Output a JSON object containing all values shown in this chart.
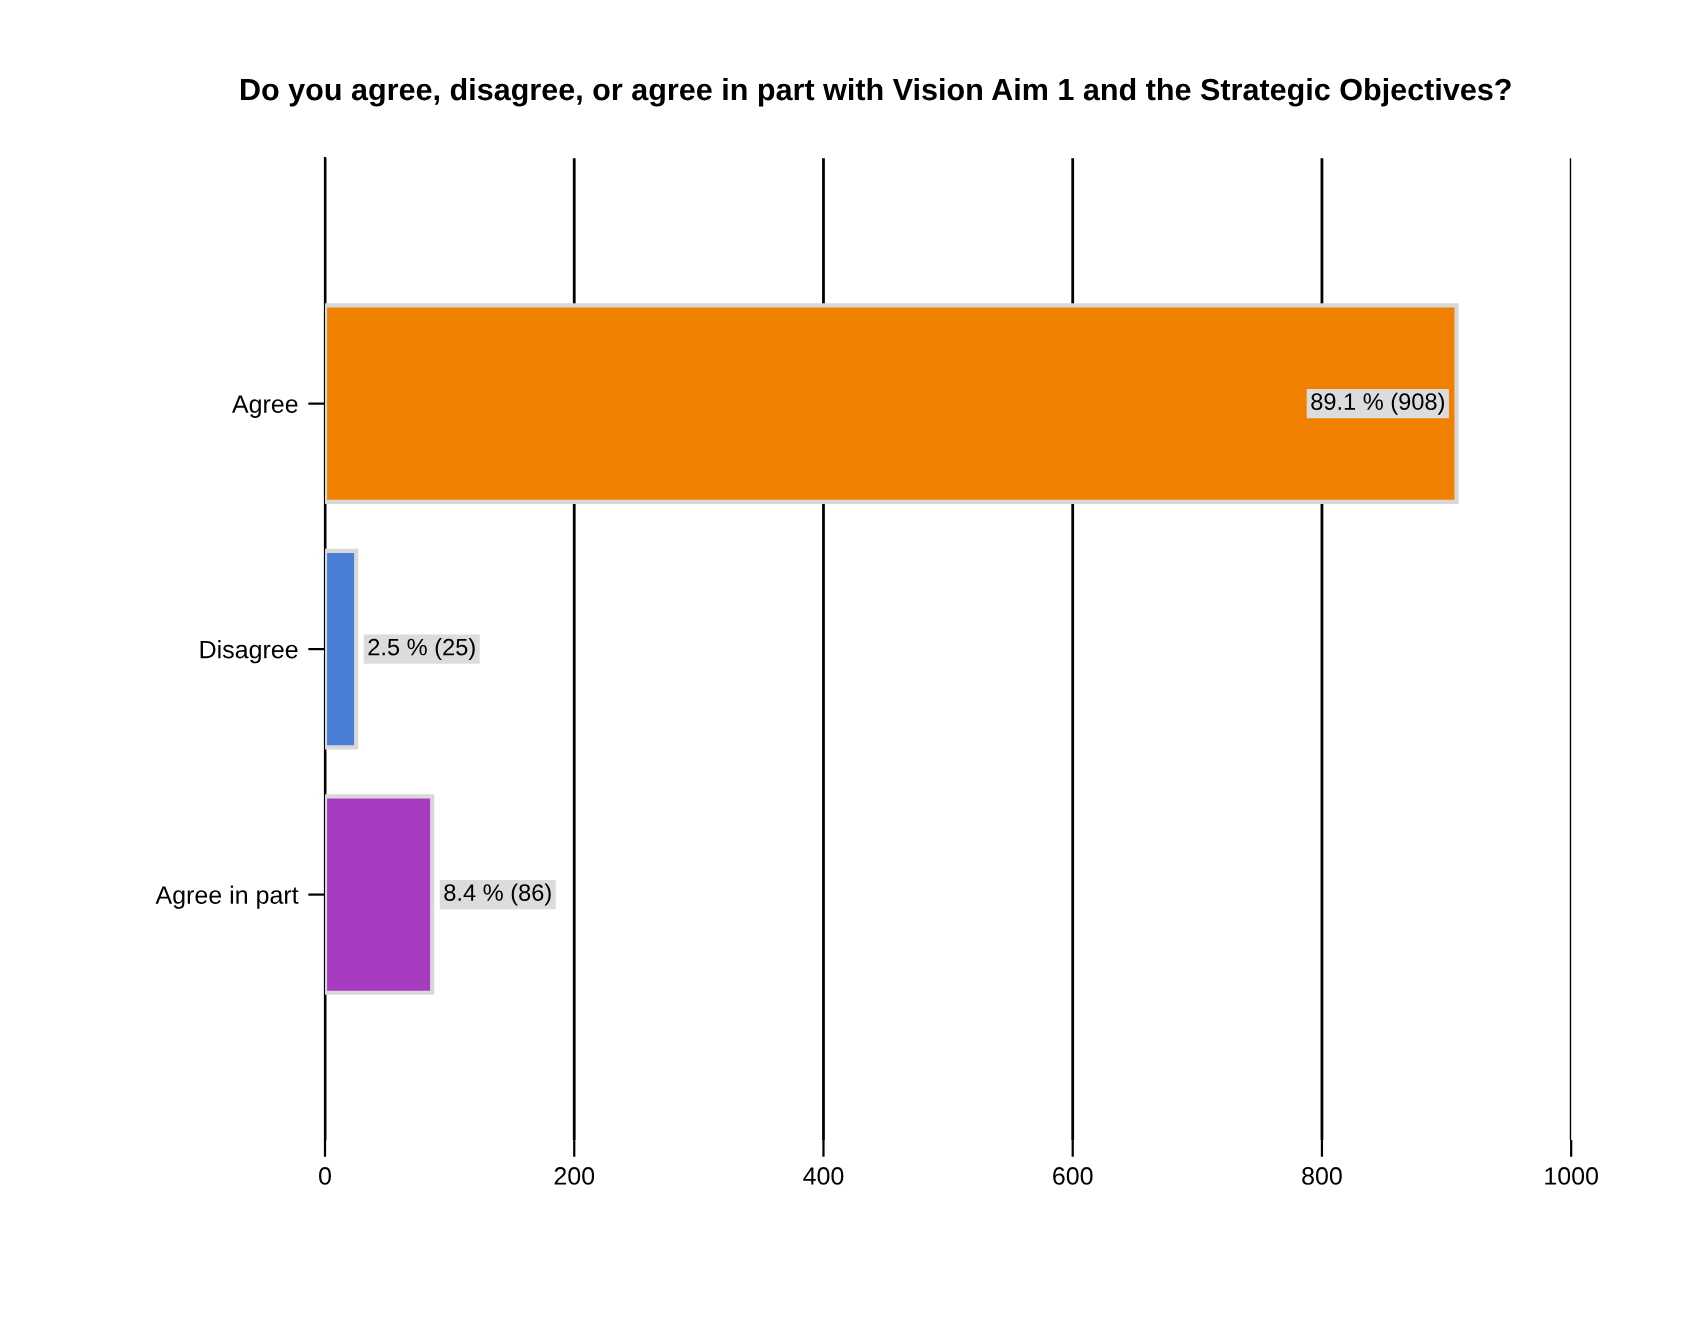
{
  "chart_data": {
    "type": "bar",
    "orientation": "horizontal",
    "title": "Do you agree, disagree, or agree in part with Vision Aim 1 and the Strategic Objectives?",
    "categories": [
      "Agree",
      "Disagree",
      "Agree in part"
    ],
    "values": [
      908,
      25,
      86
    ],
    "colors": [
      "#f08000",
      "#4a7ed6",
      "#a83cc0"
    ],
    "value_labels": [
      "89.1 % (908)",
      "2.5 % (25)",
      "8.4 % (86)"
    ],
    "xlim": [
      0,
      1000
    ],
    "xticks": [
      0,
      200,
      400,
      600,
      800,
      1000
    ],
    "grid": "x",
    "legend": false
  }
}
